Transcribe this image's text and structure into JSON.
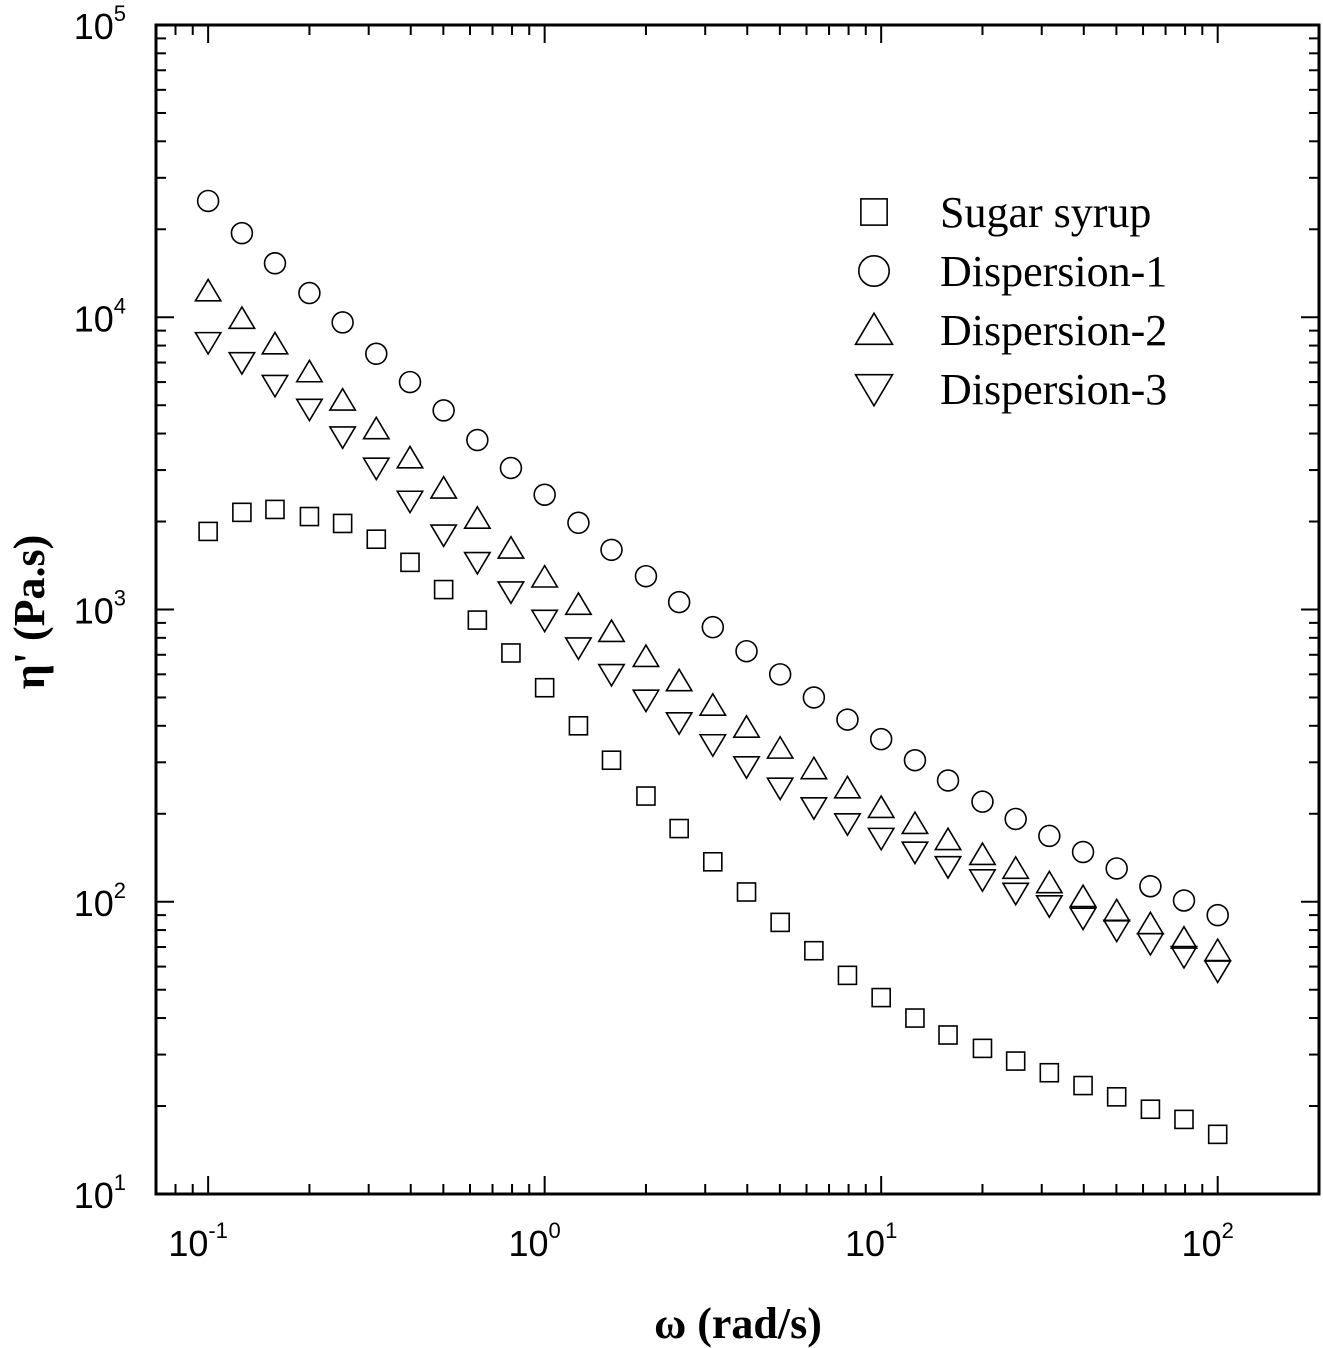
{
  "chart_data": {
    "type": "scatter",
    "x_scale": "log",
    "y_scale": "log",
    "xlim": [
      0.07,
      200
    ],
    "ylim": [
      10,
      100000
    ],
    "xlabel": "ω (rad/s)",
    "ylabel": "η' (Pa.s)",
    "x_ticks": [
      {
        "base": "10",
        "exp": "-1",
        "value": 0.1
      },
      {
        "base": "10",
        "exp": "0",
        "value": 1
      },
      {
        "base": "10",
        "exp": "1",
        "value": 10
      },
      {
        "base": "10",
        "exp": "2",
        "value": 100
      }
    ],
    "y_ticks": [
      {
        "base": "10",
        "exp": "1",
        "value": 10
      },
      {
        "base": "10",
        "exp": "2",
        "value": 100
      },
      {
        "base": "10",
        "exp": "3",
        "value": 1000
      },
      {
        "base": "10",
        "exp": "4",
        "value": 10000
      },
      {
        "base": "10",
        "exp": "5",
        "value": 100000
      }
    ],
    "x": [
      0.1,
      0.126,
      0.158,
      0.2,
      0.251,
      0.316,
      0.398,
      0.501,
      0.631,
      0.794,
      1,
      1.26,
      1.58,
      2,
      2.51,
      3.16,
      3.98,
      5.01,
      6.31,
      7.94,
      10,
      12.6,
      15.8,
      20,
      25.1,
      31.6,
      39.8,
      50.1,
      63.1,
      79.4,
      100
    ],
    "legend_position": "top-right",
    "series": [
      {
        "name": "Sugar syrup",
        "marker": "square",
        "values": [
          1850,
          2150,
          2200,
          2080,
          1970,
          1740,
          1450,
          1170,
          920,
          710,
          540,
          400,
          305,
          230,
          178,
          137,
          108,
          85,
          68,
          56,
          47,
          40,
          35,
          31.5,
          28.5,
          26,
          23.5,
          21.5,
          19.5,
          18,
          16
        ]
      },
      {
        "name": "Dispersion-1",
        "marker": "circle",
        "values": [
          25000,
          19400,
          15300,
          12100,
          9600,
          7500,
          6000,
          4800,
          3800,
          3050,
          2470,
          1980,
          1600,
          1300,
          1060,
          870,
          720,
          600,
          500,
          420,
          360,
          305,
          260,
          220,
          192,
          168,
          148,
          130,
          113,
          101,
          90
        ]
      },
      {
        "name": "Dispersion-2",
        "marker": "triangle-up",
        "values": [
          12300,
          9900,
          8100,
          6500,
          5200,
          4150,
          3300,
          2600,
          2050,
          1620,
          1290,
          1040,
          840,
          690,
          570,
          470,
          395,
          335,
          285,
          245,
          210,
          185,
          163,
          145,
          130,
          116,
          104,
          93,
          84,
          75,
          68
        ]
      },
      {
        "name": "Dispersion-3",
        "marker": "triangle-down",
        "values": [
          8200,
          7000,
          5850,
          4850,
          3900,
          3050,
          2350,
          1800,
          1450,
          1150,
          920,
          740,
          600,
          490,
          410,
          345,
          290,
          245,
          210,
          185,
          165,
          148,
          132,
          119,
          107,
          97,
          88,
          80,
          72,
          65,
          58
        ]
      }
    ]
  }
}
